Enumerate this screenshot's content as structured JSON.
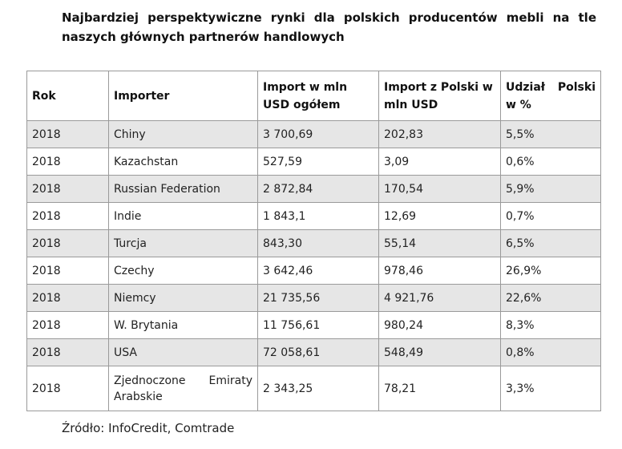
{
  "title": "Najbardziej perspektywiczne rynki dla polskich producentów mebli na tle naszych głównych partnerów handlowych",
  "table": {
    "headers": [
      "Rok",
      "Importer",
      "Import w mln USD ogółem",
      "Import z Polski w mln USD",
      "Udział Polski w %"
    ],
    "rows": [
      [
        "2018",
        "Chiny",
        "3 700,69",
        "202,83",
        "5,5%"
      ],
      [
        "2018",
        "Kazachstan",
        "527,59",
        "3,09",
        "0,6%"
      ],
      [
        "2018",
        "Russian Federation",
        "2 872,84",
        "170,54",
        "5,9%"
      ],
      [
        "2018",
        "Indie",
        "1 843,1",
        "12,69",
        "0,7%"
      ],
      [
        "2018",
        "Turcja",
        "843,30",
        "55,14",
        "6,5%"
      ],
      [
        "2018",
        "Czechy",
        "3 642,46",
        "978,46",
        "26,9%"
      ],
      [
        "2018",
        "Niemcy",
        "21 735,56",
        "4 921,76",
        "22,6%"
      ],
      [
        "2018",
        "W. Brytania",
        "11 756,61",
        "980,24",
        "8,3%"
      ],
      [
        "2018",
        "USA",
        "72 058,61",
        "548,49",
        "0,8%"
      ],
      [
        "2018",
        "Zjednoczone Emiraty Arabskie",
        "2 343,25",
        "78,21",
        "3,3%"
      ]
    ]
  },
  "source": "Źródło: InfoCredit, Comtrade"
}
